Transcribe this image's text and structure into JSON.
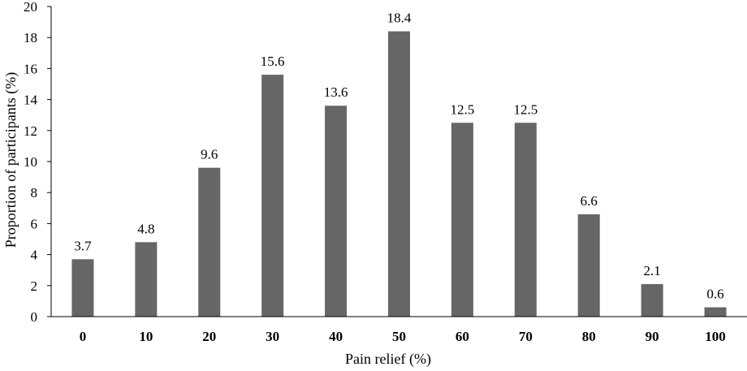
{
  "chart_data": {
    "type": "bar",
    "categories": [
      "0",
      "10",
      "20",
      "30",
      "40",
      "50",
      "60",
      "70",
      "80",
      "90",
      "100"
    ],
    "values": [
      3.7,
      4.8,
      9.6,
      15.6,
      13.6,
      18.4,
      12.5,
      12.5,
      6.6,
      2.1,
      0.6
    ],
    "data_labels": [
      "3.7",
      "4.8",
      "9.6",
      "15.6",
      "13.6",
      "18.4",
      "12.5",
      "12.5",
      "6.6",
      "2.1",
      "0.6"
    ],
    "title": "",
    "xlabel": "Pain relief (%)",
    "ylabel": "Proportion of participants (%)",
    "ylim": [
      0,
      20
    ],
    "yticks": [
      "0",
      "2",
      "4",
      "6",
      "8",
      "10",
      "12",
      "14",
      "16",
      "18",
      "20"
    ],
    "grid": false,
    "legend": "none",
    "bar_color": "#666666"
  }
}
